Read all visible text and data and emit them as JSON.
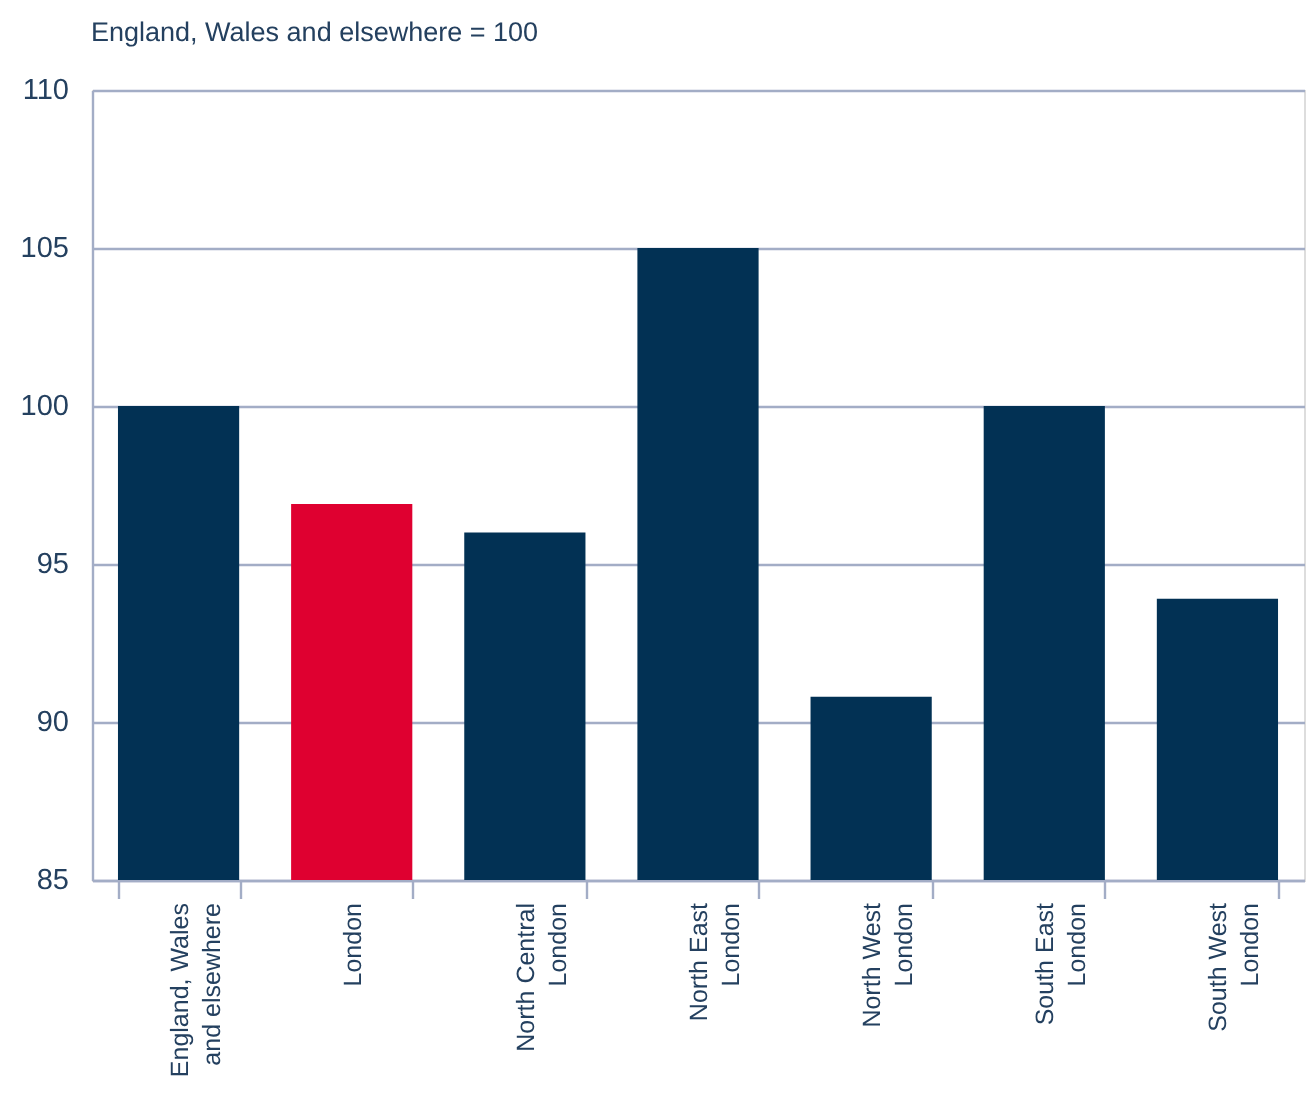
{
  "chart_data": {
    "type": "bar",
    "ylabel": "England, Wales and elsewhere = 100",
    "categories": [
      "England, Wales and elsewhere",
      "London",
      "North Central London",
      "North East London",
      "North West London",
      "South East London",
      "South West London"
    ],
    "values": [
      100,
      96.9,
      96,
      105,
      90.8,
      100,
      93.9
    ],
    "colors": [
      "#023154",
      "#df0030",
      "#023154",
      "#023154",
      "#023154",
      "#023154",
      "#023154"
    ],
    "ylim": [
      85,
      110
    ],
    "yticks": [
      85,
      90,
      95,
      100,
      105,
      110
    ],
    "grid": "y"
  }
}
